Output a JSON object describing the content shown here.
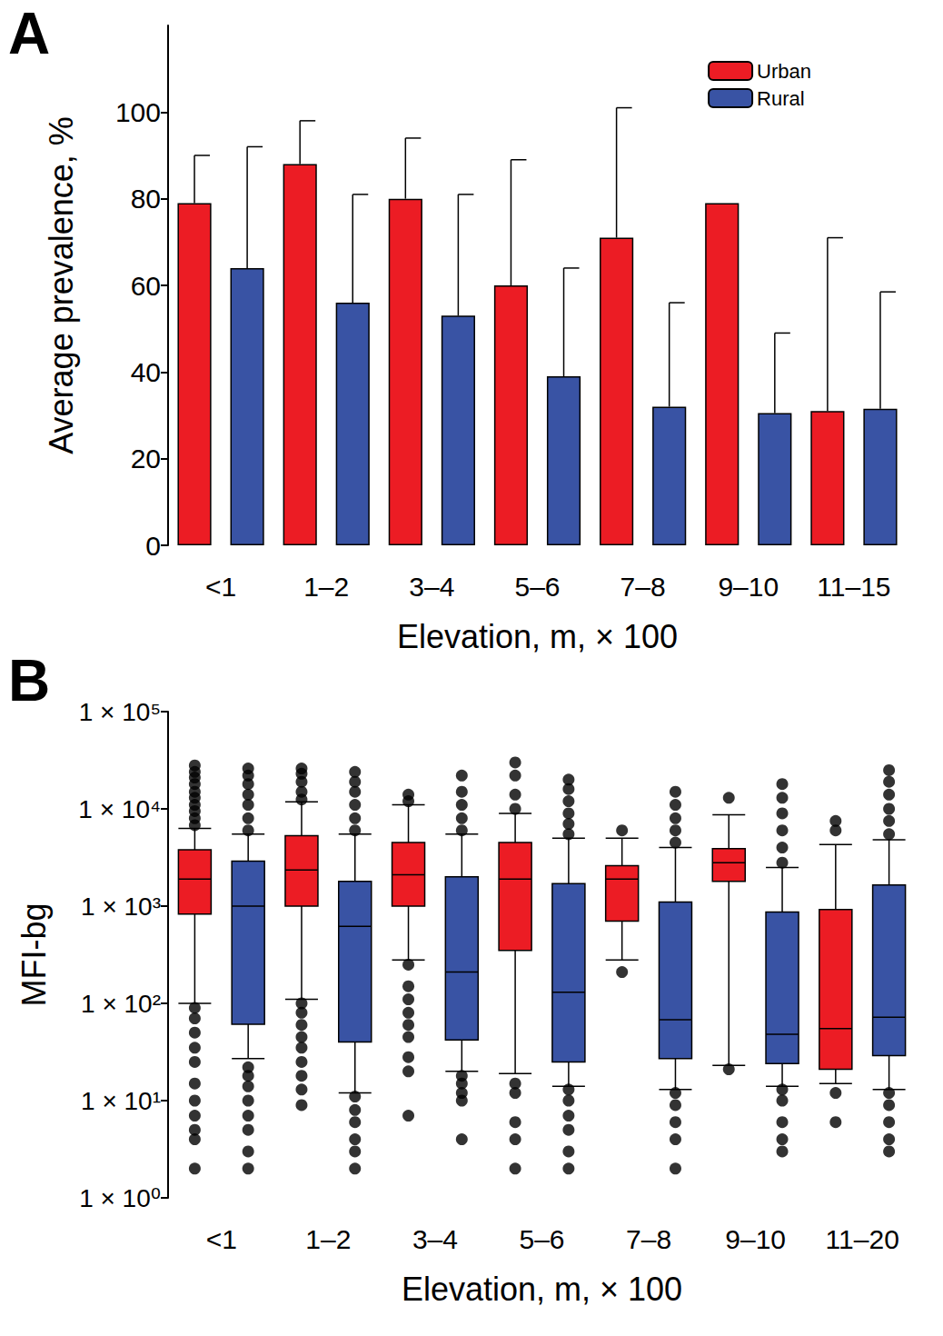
{
  "chart_data": [
    {
      "type": "bar",
      "title": "A",
      "categories": [
        "<1",
        "1–2",
        "3–4",
        "5–6",
        "7–8",
        "9–10",
        "11–15"
      ],
      "series": [
        {
          "name": "Urban",
          "color": "#ec1c24",
          "values": [
            79,
            88,
            80,
            60,
            71,
            79,
            31
          ],
          "errors": [
            11,
            10,
            14,
            29,
            30,
            null,
            40
          ]
        },
        {
          "name": "Rural",
          "color": "#3953a4",
          "values": [
            64,
            56,
            53,
            39,
            32,
            30.5,
            31.5
          ],
          "errors": [
            28,
            25,
            28,
            25,
            24,
            18.5,
            27
          ]
        }
      ],
      "xlabel": "Elevation, m, × 100",
      "ylabel": "Average prevalence, %",
      "ylim": [
        0,
        120
      ],
      "yticks": [
        0,
        20,
        40,
        60,
        80,
        100
      ],
      "legend": "upper right",
      "grid": false
    },
    {
      "type": "boxplot",
      "title": "B",
      "categories": [
        "<1",
        "1–2",
        "3–4",
        "5–6",
        "7–8",
        "9–10",
        "11–20"
      ],
      "series": [
        {
          "color": "#ec1c24",
          "boxes": [
            [
              100,
              830,
              1900,
              3800,
              6300
            ],
            [
              110,
              1000,
              2350,
              5300,
              11800
            ],
            [
              280,
              1000,
              2100,
              4500,
              11000
            ],
            [
              19,
              350,
              1900,
              4500,
              9000
            ],
            [
              280,
              700,
              1900,
              2600,
              5000
            ],
            [
              23,
              1800,
              2800,
              3900,
              8700
            ],
            [
              15,
              21,
              55,
              920,
              4300
            ]
          ],
          "outliers": [
            [
              6800,
              8000,
              9500,
              11000,
              13000,
              15000,
              18000,
              21000,
              24000,
              28000,
              90,
              70,
              50,
              35,
              25,
              15,
              10,
              7,
              5,
              4,
              2
            ],
            [
              12500,
              15000,
              19000,
              23000,
              26000,
              100,
              80,
              60,
              45,
              35,
              25,
              18,
              13,
              9
            ],
            [
              12000,
              14000,
              250,
              150,
              110,
              80,
              60,
              45,
              28,
              20,
              7
            ],
            [
              10000,
              14000,
              22000,
              30000,
              15,
              12,
              6,
              4,
              2
            ],
            [
              6000,
              210
            ],
            [
              13000,
              21
            ],
            [
              7500,
              6000,
              12,
              6
            ]
          ]
        },
        {
          "color": "#3953a4",
          "boxes": [
            [
              27,
              61,
              1000,
              2900,
              5500
            ],
            [
              12,
              40,
              620,
              1800,
              5500
            ],
            [
              20,
              42,
              210,
              2000,
              5500
            ],
            [
              14,
              25,
              130,
              1700,
              5000
            ],
            [
              13,
              27,
              68,
              1100,
              4000
            ],
            [
              14,
              24,
              48,
              870,
              2500
            ],
            [
              13,
              29,
              72,
              1650,
              4800
            ]
          ],
          "outliers": [
            [
              6000,
              8000,
              11000,
              14000,
              18000,
              22000,
              26000,
              22,
              18,
              14,
              10,
              7,
              5,
              3,
              2
            ],
            [
              6000,
              8000,
              11000,
              15000,
              19000,
              24000,
              11,
              8,
              6,
              4,
              3,
              2
            ],
            [
              6000,
              8000,
              11000,
              15000,
              22000,
              18,
              15,
              12,
              10,
              4
            ],
            [
              5500,
              7000,
              9000,
              12000,
              16000,
              20000,
              13,
              10,
              7,
              5,
              3,
              2
            ],
            [
              4500,
              6000,
              8000,
              11000,
              15000,
              12,
              9,
              6,
              4,
              2
            ],
            [
              2800,
              4000,
              6000,
              9000,
              13000,
              18000,
              13,
              10,
              6,
              4,
              3
            ],
            [
              5500,
              7500,
              10000,
              14000,
              19000,
              25000,
              12,
              9,
              6,
              4,
              3
            ]
          ]
        }
      ],
      "xlabel": "Elevation, m, × 100",
      "ylabel": "MFI-bg",
      "log": "y",
      "ylim": [
        1,
        100000
      ],
      "yticks": [
        {
          "value": 1,
          "label": "1 × 10⁰"
        },
        {
          "value": 10,
          "label": "1 × 10¹"
        },
        {
          "value": 100,
          "label": "1 × 10²"
        },
        {
          "value": 1000,
          "label": "1 × 10³"
        },
        {
          "value": 10000,
          "label": "1 × 10⁴"
        },
        {
          "value": 100000,
          "label": "1 × 10⁵"
        }
      ],
      "grid": false
    }
  ]
}
